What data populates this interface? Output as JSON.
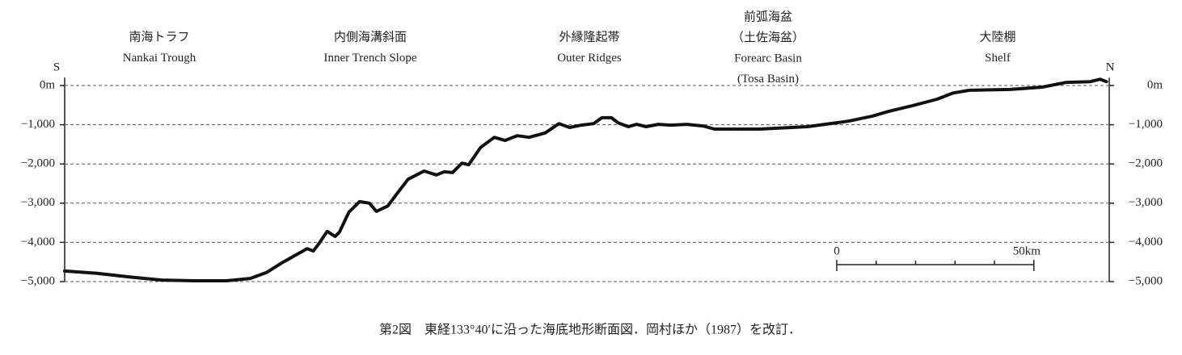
{
  "chart_data": {
    "type": "line",
    "regions": [
      {
        "lines": [
          "南海トラフ",
          "Nankai Trough"
        ]
      },
      {
        "lines": [
          "内側海溝斜面",
          "Inner Trench Slope"
        ]
      },
      {
        "lines": [
          "外縁隆起帯",
          "Outer Ridges"
        ]
      },
      {
        "lines": [
          "前弧海盆",
          "（土佐海盆）",
          "Forearc Basin",
          "(Tosa Basin)"
        ]
      },
      {
        "lines": [
          "大陸棚",
          "Shelf"
        ]
      }
    ],
    "left_end_label": "S",
    "right_end_label": "N",
    "caption": "第2図　東経133°40′に沿った海底地形断面図．岡村ほか（1987）を改訂．",
    "x": [
      0,
      8.2,
      16.4,
      24.6,
      32.8,
      41,
      47.1,
      51.2,
      55.3,
      61.5,
      63.1,
      64.5,
      66.6,
      68.6,
      69.7,
      72.1,
      74.8,
      77.3,
      79.1,
      82,
      84,
      87.1,
      91.2,
      94.3,
      96.3,
      98.4,
      100.8,
      102.5,
      105.5,
      109,
      111.7,
      114.8,
      117.8,
      121.9,
      125.4,
      128.1,
      131.1,
      134.2,
      136.3,
      138.7,
      140.4,
      143,
      145.1,
      147.5,
      150.6,
      153.7,
      157.8,
      161.9,
      164.9,
      176.2,
      188.5,
      198.8,
      204.9,
      209,
      215.2,
      221.3,
      225.4,
      229.5,
      239.8,
      248,
      254.1,
      260.2,
      262.7,
      264.3
    ],
    "series": [
      {
        "color": "#111111",
        "values": [
          -4730,
          -4790,
          -4880,
          -4960,
          -4980,
          -4980,
          -4920,
          -4770,
          -4510,
          -4160,
          -4220,
          -4030,
          -3720,
          -3850,
          -3740,
          -3230,
          -2960,
          -3000,
          -3210,
          -3070,
          -2800,
          -2390,
          -2180,
          -2280,
          -2200,
          -2220,
          -1980,
          -2020,
          -1580,
          -1320,
          -1400,
          -1280,
          -1320,
          -1210,
          -970,
          -1070,
          -1010,
          -970,
          -820,
          -820,
          -950,
          -1050,
          -990,
          -1050,
          -990,
          -1010,
          -990,
          -1030,
          -1110,
          -1110,
          -1050,
          -910,
          -780,
          -660,
          -510,
          -350,
          -190,
          -120,
          -100,
          -40,
          80,
          100,
          160,
          100
        ]
      }
    ],
    "xlim": [
      0,
      265
    ],
    "ylim": [
      -5000,
      200
    ],
    "yticks": [
      {
        "value": 0,
        "label": "0m"
      },
      {
        "value": -1000,
        "label": "−1,000"
      },
      {
        "value": -2000,
        "label": "−2,000"
      },
      {
        "value": -3000,
        "label": "−3,000"
      },
      {
        "value": -4000,
        "label": "−4,000"
      },
      {
        "value": -5000,
        "label": "−5,000"
      }
    ],
    "grid": true,
    "scale_bar": {
      "ticks": [
        {
          "value": 0,
          "label": "0"
        },
        10,
        20,
        30,
        40,
        {
          "value": 50,
          "label": "50km"
        }
      ]
    }
  }
}
